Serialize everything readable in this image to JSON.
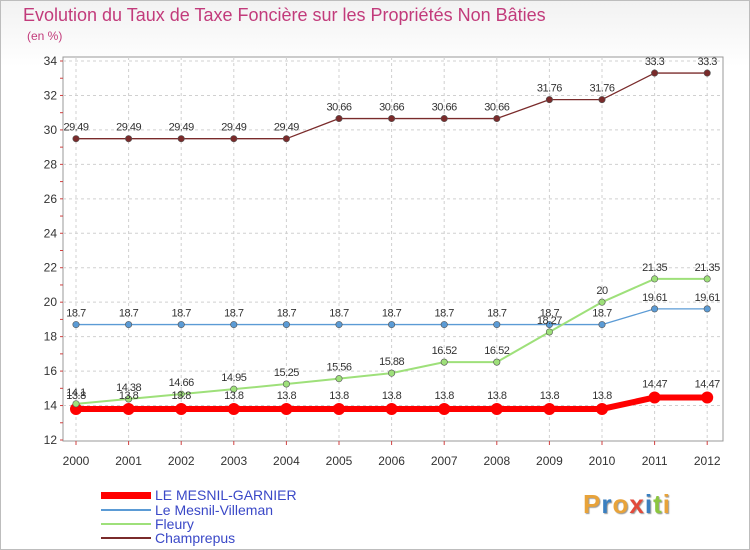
{
  "header": {
    "title": "Evolution du Taux de Taxe Foncière sur les Propriétés Non Bâties",
    "unit": "(en %)"
  },
  "brand": {
    "letters": [
      "P",
      "r",
      "o",
      "x",
      "i",
      "t",
      "i"
    ],
    "colors": [
      "#e8a33a",
      "#3a7fc0",
      "#e8a33a",
      "#e24a3b",
      "#3a7fc0",
      "#8cc63f",
      "#e8a33a"
    ]
  },
  "chart_data": {
    "type": "line",
    "title": "Evolution du Taux de Taxe Foncière sur les Propriétés Non Bâties",
    "ylabel": "(en %)",
    "xlabel": "",
    "ylim": [
      12,
      34
    ],
    "yticks": [
      12,
      14,
      16,
      18,
      20,
      22,
      24,
      26,
      28,
      30,
      32,
      34
    ],
    "categories": [
      "2000",
      "2001",
      "2002",
      "2003",
      "2004",
      "2005",
      "2006",
      "2007",
      "2008",
      "2009",
      "2010",
      "2011",
      "2012"
    ],
    "series": [
      {
        "name": "LE MESNIL-GARNIER",
        "color": "#ff0000",
        "width": 6,
        "marker": 6,
        "values": [
          13.8,
          13.8,
          13.8,
          13.8,
          13.8,
          13.8,
          13.8,
          13.8,
          13.8,
          13.8,
          13.8,
          14.47,
          14.47
        ],
        "labels": [
          "13.8",
          "13.8",
          "13.8",
          "13.8",
          "13.8",
          "13.8",
          "13.8",
          "13.8",
          "13.8",
          "13.8",
          "13.8",
          "14.47",
          "14.47"
        ]
      },
      {
        "name": "Le Mesnil-Villeman",
        "color": "#5b9bd5",
        "width": 1.3,
        "marker": 3.2,
        "values": [
          18.7,
          18.7,
          18.7,
          18.7,
          18.7,
          18.7,
          18.7,
          18.7,
          18.7,
          18.7,
          18.7,
          19.61,
          19.61
        ],
        "labels": [
          "18.7",
          "18.7",
          "18.7",
          "18.7",
          "18.7",
          "18.7",
          "18.7",
          "18.7",
          "18.7",
          "18.7",
          "18.7",
          "19.61",
          "19.61"
        ]
      },
      {
        "name": "Fleury",
        "color": "#9ee07a",
        "width": 2,
        "marker": 3.2,
        "values": [
          14.1,
          14.38,
          14.66,
          14.95,
          15.25,
          15.56,
          15.88,
          16.52,
          16.52,
          18.27,
          20,
          21.35,
          21.35
        ],
        "labels": [
          "14.1",
          "14.38",
          "14.66",
          "14.95",
          "15.25",
          "15.56",
          "15.88",
          "16.52",
          "16.52",
          "18.27",
          "20",
          "21.35",
          "21.35"
        ]
      },
      {
        "name": "Champrepus",
        "color": "#7a2b2b",
        "width": 1.3,
        "marker": 3.2,
        "values": [
          29.49,
          29.49,
          29.49,
          29.49,
          29.49,
          30.66,
          30.66,
          30.66,
          30.66,
          31.76,
          31.76,
          33.3,
          33.3
        ],
        "labels": [
          "29.49",
          "29.49",
          "29.49",
          "29.49",
          "29.49",
          "30.66",
          "30.66",
          "30.66",
          "30.66",
          "31.76",
          "31.76",
          "33.3",
          "33.3"
        ]
      }
    ]
  }
}
